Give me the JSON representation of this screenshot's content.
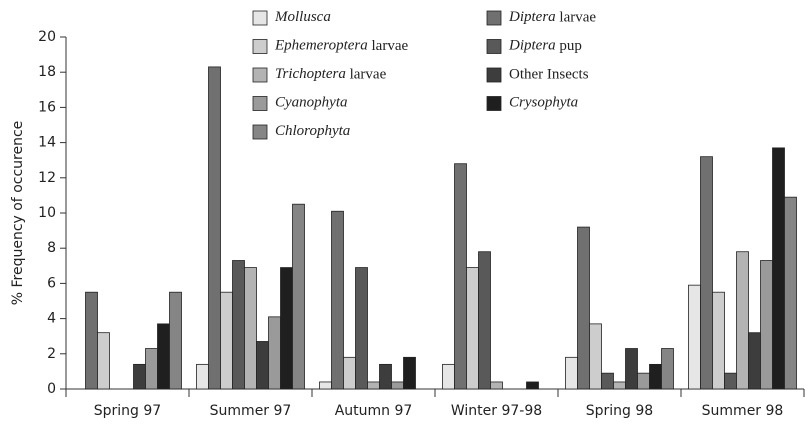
{
  "chart_data": {
    "type": "bar",
    "y_label": "% Frequency of occurence",
    "categories": [
      "Spring 97",
      "Summer 97",
      "Autumn 97",
      "Winter 97-98",
      "Spring 98",
      "Summer 98"
    ],
    "series": [
      {
        "name": "Mollusca",
        "color": "#e6e6e6",
        "values": [
          0,
          1.4,
          0.4,
          1.4,
          1.8,
          5.9
        ]
      },
      {
        "name": "Diptera larvae",
        "color": "#707070",
        "values": [
          5.5,
          18.3,
          10.1,
          12.8,
          9.2,
          13.2
        ]
      },
      {
        "name": "Ephemeroptera larvae",
        "color": "#cdcdcd",
        "values": [
          3.2,
          5.5,
          1.8,
          6.9,
          3.7,
          5.5
        ]
      },
      {
        "name": "Diptera pup",
        "color": "#595959",
        "values": [
          0,
          7.3,
          6.9,
          7.8,
          0.9,
          0.9
        ]
      },
      {
        "name": "Trichoptera larvae",
        "color": "#b3b3b3",
        "values": [
          0,
          6.9,
          0.4,
          0.4,
          0.4,
          7.8
        ]
      },
      {
        "name": "Other Insects",
        "color": "#3d3d3d",
        "values": [
          1.4,
          2.7,
          1.4,
          0,
          2.3,
          3.2
        ]
      },
      {
        "name": "Cyanophyta",
        "color": "#9a9a9a",
        "values": [
          2.3,
          4.1,
          0.4,
          0,
          0.9,
          7.3
        ]
      },
      {
        "name": "Crysophyta",
        "color": "#1f1f1f",
        "values": [
          3.7,
          6.9,
          1.8,
          0.4,
          1.4,
          13.7
        ]
      },
      {
        "name": "Chlorophyta",
        "color": "#858585",
        "values": [
          5.5,
          10.5,
          0,
          0,
          2.3,
          10.9
        ]
      }
    ],
    "ylim": [
      0,
      20
    ],
    "yticks": [
      0,
      2,
      4,
      6,
      8,
      10,
      12,
      14,
      16,
      18,
      20
    ],
    "italic_names": true
  }
}
